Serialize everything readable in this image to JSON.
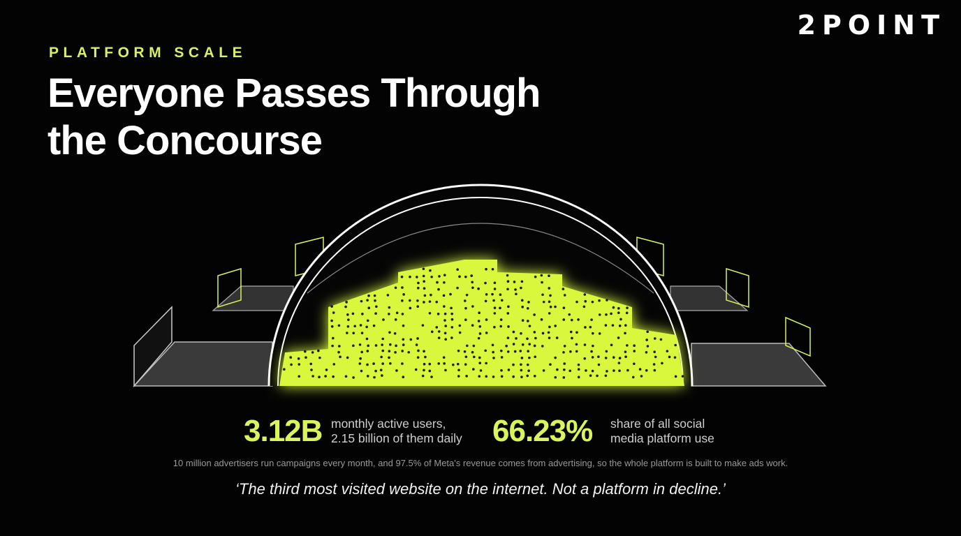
{
  "brand": "2POINT",
  "eyebrow": "PLATFORM SCALE",
  "title": [
    "Everyone Passes Through",
    "the Concourse"
  ],
  "stats": [
    {
      "value": "3.12B",
      "description": [
        "monthly active users,",
        "2.15 billion of them daily"
      ]
    },
    {
      "value": "66.23%",
      "description": [
        "share of all social",
        "media platform use"
      ]
    }
  ],
  "footnote": "10 million advertisers run campaigns every month, and 97.5% of Meta's revenue comes from advertising, so the whole platform is built to make ads work.",
  "quote": "‘The third most visited website on the internet. Not a platform in decline.’"
}
